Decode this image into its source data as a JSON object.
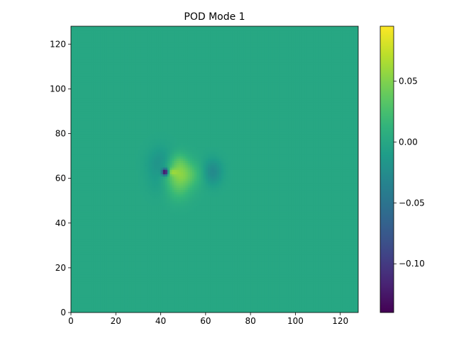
{
  "chart_data": {
    "type": "heatmap",
    "title": "POD Mode 1",
    "xlabel": "",
    "ylabel": "",
    "xlim": [
      0,
      128
    ],
    "ylim": [
      0,
      128
    ],
    "x_ticks": [
      0,
      20,
      40,
      60,
      80,
      100,
      120
    ],
    "y_ticks": [
      0,
      20,
      40,
      60,
      80,
      100,
      120
    ],
    "colormap": "viridis",
    "colorbar": {
      "vmin": -0.14,
      "vmax": 0.095,
      "ticks": [
        0.05,
        0.0,
        -0.05,
        -0.1
      ],
      "tick_labels": [
        "0.05",
        "0.00",
        "−0.05",
        "−0.10"
      ]
    },
    "background_value": 0.0,
    "features": [
      {
        "shape": "gaussian",
        "x": 48,
        "y": 62,
        "sx": 6,
        "sy": 4,
        "value": 0.05
      },
      {
        "shape": "gaussian",
        "x": 48,
        "y": 68,
        "sx": 3,
        "sy": 3,
        "value": 0.02
      },
      {
        "shape": "gaussian",
        "x": 48,
        "y": 55,
        "sx": 4,
        "sy": 4,
        "value": 0.02
      },
      {
        "shape": "gaussian",
        "x": 44,
        "y": 63,
        "sx": 2,
        "sy": 1,
        "value": 0.03
      },
      {
        "shape": "gaussian",
        "x": 42,
        "y": 63,
        "sx": 1,
        "sy": 1,
        "value": -0.17
      },
      {
        "shape": "gaussian",
        "x": 40,
        "y": 64,
        "sx": 4,
        "sy": 6,
        "value": -0.03
      },
      {
        "shape": "gaussian",
        "x": 63,
        "y": 63,
        "sx": 3,
        "sy": 4,
        "value": -0.03
      }
    ]
  }
}
